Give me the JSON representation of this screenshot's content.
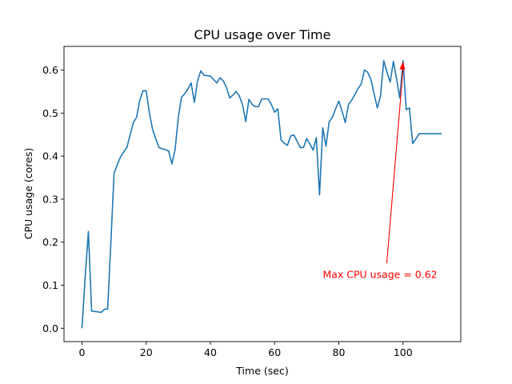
{
  "chart_data": {
    "type": "line",
    "title": "CPU usage over Time",
    "xlabel": "Time (sec)",
    "ylabel": "CPU usage (cores)",
    "xlim": [
      -5.6,
      118
    ],
    "ylim": [
      -0.031,
      0.655
    ],
    "xticks": [
      0,
      20,
      40,
      60,
      80,
      100
    ],
    "yticks": [
      0.0,
      0.1,
      0.2,
      0.3,
      0.4,
      0.5,
      0.6
    ],
    "ytick_labels": [
      "0.0",
      "0.1",
      "0.2",
      "0.3",
      "0.4",
      "0.5",
      "0.6"
    ],
    "grid": false,
    "line_color": "#1f77b4",
    "series": [
      {
        "x": [
          0,
          1,
          2,
          3,
          4,
          5,
          6,
          7,
          8,
          9,
          10,
          11,
          12,
          13,
          14,
          15,
          16,
          17,
          18,
          19,
          20,
          21,
          22,
          23,
          24,
          25,
          26,
          27,
          28,
          29,
          30,
          31,
          32,
          33,
          34,
          35,
          36,
          37,
          38,
          39,
          40,
          41,
          42,
          43,
          44,
          45,
          46,
          47,
          48,
          49,
          50,
          51,
          52,
          53,
          54,
          55,
          56,
          57,
          58,
          59,
          60,
          61,
          62,
          63,
          64,
          65,
          66,
          67,
          68,
          69,
          70,
          71,
          72,
          73,
          74,
          75,
          76,
          77,
          78,
          79,
          80,
          81,
          82,
          83,
          84,
          85,
          86,
          87,
          88,
          89,
          90,
          91,
          92,
          93,
          94,
          95,
          96,
          97,
          98,
          99,
          100,
          101,
          102,
          103,
          104,
          105,
          106,
          107,
          108,
          109,
          110,
          111,
          112
        ],
        "y": [
          0.0,
          0.12,
          0.225,
          0.04,
          0.039,
          0.038,
          0.037,
          0.044,
          0.045,
          0.2,
          0.36,
          0.38,
          0.398,
          0.41,
          0.42,
          0.45,
          0.478,
          0.49,
          0.53,
          0.552,
          0.552,
          0.5,
          0.462,
          0.44,
          0.42,
          0.417,
          0.415,
          0.412,
          0.382,
          0.415,
          0.49,
          0.537,
          0.545,
          0.556,
          0.57,
          0.525,
          0.575,
          0.598,
          0.588,
          0.587,
          0.586,
          0.578,
          0.57,
          0.582,
          0.575,
          0.56,
          0.535,
          0.542,
          0.55,
          0.54,
          0.52,
          0.48,
          0.532,
          0.52,
          0.515,
          0.515,
          0.533,
          0.533,
          0.533,
          0.52,
          0.502,
          0.51,
          0.438,
          0.43,
          0.425,
          0.447,
          0.449,
          0.435,
          0.42,
          0.42,
          0.441,
          0.428,
          0.414,
          0.443,
          0.31,
          0.466,
          0.423,
          0.48,
          0.49,
          0.51,
          0.528,
          0.505,
          0.478,
          0.52,
          0.53,
          0.543,
          0.557,
          0.568,
          0.6,
          0.595,
          0.578,
          0.545,
          0.512,
          0.54,
          0.622,
          0.595,
          0.572,
          0.62,
          0.58,
          0.535,
          0.622,
          0.508,
          0.512,
          0.429,
          0.44,
          0.452,
          0.452,
          0.452,
          0.452,
          0.452,
          0.452,
          0.452,
          0.452
        ]
      }
    ],
    "annotation": {
      "text": "Max CPU usage = 0.62",
      "point": [
        100,
        0.62
      ],
      "text_pos": [
        75,
        0.125
      ],
      "color": "#ff0000"
    }
  }
}
